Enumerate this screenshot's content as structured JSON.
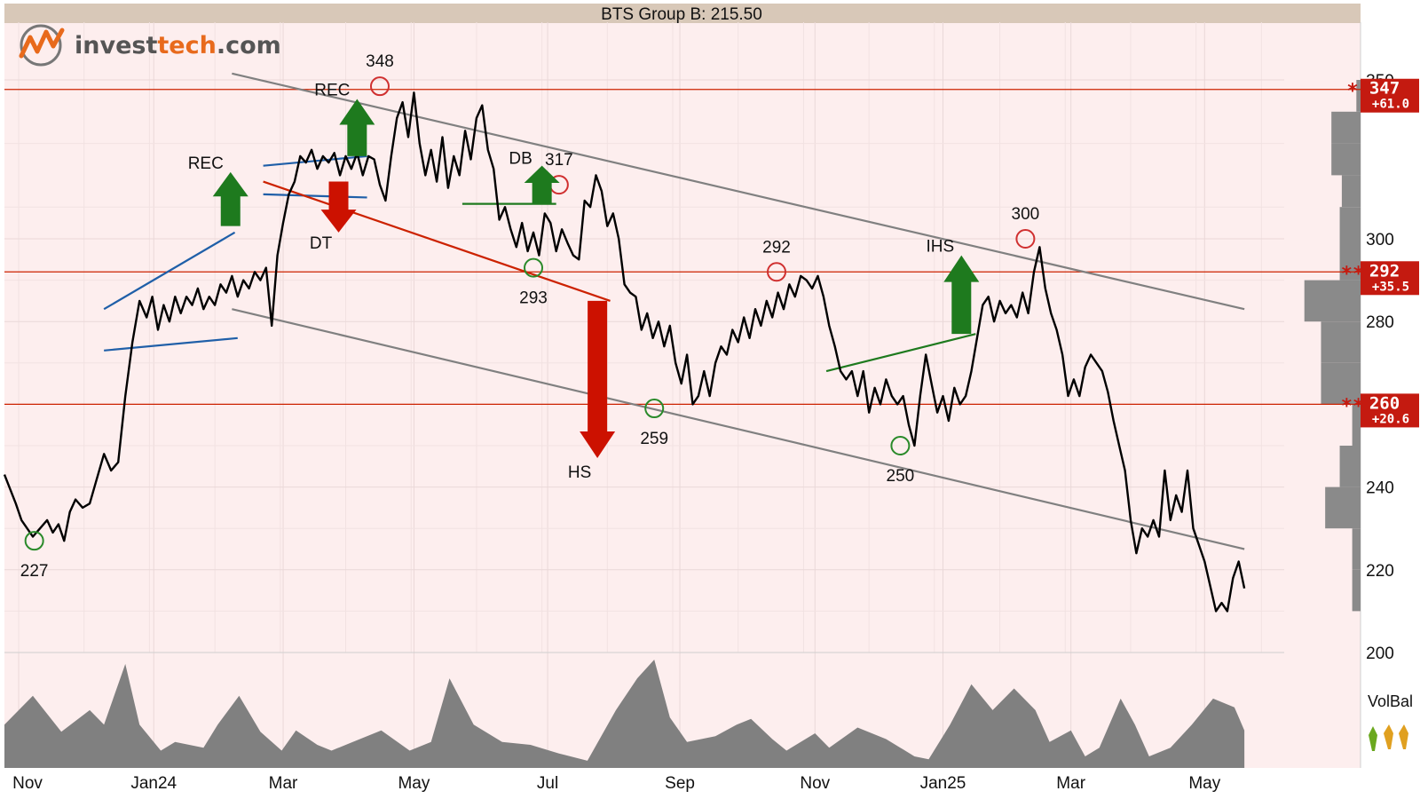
{
  "logo": {
    "brand_part": "invest",
    "accent_part": "tech",
    "suffix": ".com",
    "brand_color": "#555555",
    "accent_color": "#e86a1c"
  },
  "chart_data": {
    "type": "line",
    "title": "BTS Group B: 215.50",
    "xlabel": "",
    "ylabel": "",
    "ylim": [
      200,
      360
    ],
    "y_ticks": [
      200,
      220,
      240,
      260,
      280,
      300,
      350
    ],
    "x_ticks": [
      "Nov",
      "Jan24",
      "Mar",
      "May",
      "Jul",
      "Sep",
      "Nov",
      "Jan25",
      "Mar",
      "May"
    ],
    "grid": true,
    "colors": {
      "price": "#000000",
      "support_resistance": "#cc2200",
      "channel": "#808080",
      "wedge": "#1f5fa8",
      "signal_up": "#1e7a1e",
      "signal_down": "#cc1100",
      "volume": "#808080",
      "background": "#fdeeee",
      "title_bar": "#d8c8b8"
    },
    "price_series": {
      "name": "",
      "points": [
        [
          0,
          243
        ],
        [
          0.8,
          236
        ],
        [
          1.2,
          232
        ],
        [
          1.6,
          230
        ],
        [
          2.0,
          228
        ],
        [
          2.5,
          230
        ],
        [
          3,
          232
        ],
        [
          3.4,
          229
        ],
        [
          3.8,
          231
        ],
        [
          4.2,
          227
        ],
        [
          4.6,
          234
        ],
        [
          5,
          237
        ],
        [
          5.5,
          235
        ],
        [
          6,
          236
        ],
        [
          6.5,
          242
        ],
        [
          7,
          248
        ],
        [
          7.5,
          244
        ],
        [
          8,
          246
        ],
        [
          8.5,
          262
        ],
        [
          9,
          275
        ],
        [
          9.5,
          285
        ],
        [
          10,
          281
        ],
        [
          10.4,
          286
        ],
        [
          10.8,
          278
        ],
        [
          11.2,
          284
        ],
        [
          11.6,
          280
        ],
        [
          12,
          286
        ],
        [
          12.4,
          282
        ],
        [
          12.8,
          286
        ],
        [
          13.2,
          284
        ],
        [
          13.6,
          288
        ],
        [
          14,
          283
        ],
        [
          14.4,
          286
        ],
        [
          14.8,
          284
        ],
        [
          15.2,
          289
        ],
        [
          15.6,
          287
        ],
        [
          16,
          291
        ],
        [
          16.4,
          286
        ],
        [
          16.8,
          290
        ],
        [
          17.2,
          288
        ],
        [
          17.6,
          292
        ],
        [
          18,
          290
        ],
        [
          18.4,
          293
        ],
        [
          18.8,
          279
        ],
        [
          19.2,
          296
        ],
        [
          19.6,
          305
        ],
        [
          20,
          314
        ],
        [
          20.4,
          318
        ],
        [
          20.8,
          326
        ],
        [
          21.2,
          324
        ],
        [
          21.6,
          328
        ],
        [
          22,
          322
        ],
        [
          22.4,
          326
        ],
        [
          22.8,
          324
        ],
        [
          23.2,
          327
        ],
        [
          23.6,
          320
        ],
        [
          24,
          326
        ],
        [
          24.4,
          322
        ],
        [
          24.8,
          327
        ],
        [
          25.2,
          320
        ],
        [
          25.6,
          326
        ],
        [
          26,
          325
        ],
        [
          26.4,
          317
        ],
        [
          26.8,
          312
        ],
        [
          27.2,
          326
        ],
        [
          27.6,
          338
        ],
        [
          28,
          343
        ],
        [
          28.4,
          332
        ],
        [
          28.8,
          346
        ],
        [
          29.2,
          330
        ],
        [
          29.6,
          320
        ],
        [
          30,
          328
        ],
        [
          30.4,
          318
        ],
        [
          30.8,
          332
        ],
        [
          31.2,
          316
        ],
        [
          31.6,
          326
        ],
        [
          32,
          320
        ],
        [
          32.4,
          334
        ],
        [
          32.8,
          325
        ],
        [
          33.2,
          338
        ],
        [
          33.6,
          342
        ],
        [
          34,
          328
        ],
        [
          34.4,
          322
        ],
        [
          34.8,
          306
        ],
        [
          35.2,
          310
        ],
        [
          35.6,
          303
        ],
        [
          36,
          298
        ],
        [
          36.4,
          305
        ],
        [
          36.8,
          297
        ],
        [
          37.2,
          302
        ],
        [
          37.6,
          296
        ],
        [
          38,
          308
        ],
        [
          38.4,
          305
        ],
        [
          38.8,
          297
        ],
        [
          39.2,
          303
        ],
        [
          39.6,
          299
        ],
        [
          40,
          296
        ],
        [
          40.4,
          295
        ],
        [
          40.8,
          312
        ],
        [
          41.2,
          310
        ],
        [
          41.6,
          320
        ],
        [
          42,
          315
        ],
        [
          42.4,
          304
        ],
        [
          42.8,
          308
        ],
        [
          43.2,
          300
        ],
        [
          43.6,
          289
        ],
        [
          44,
          287
        ],
        [
          44.4,
          286
        ],
        [
          44.8,
          278
        ],
        [
          45.2,
          282
        ],
        [
          45.6,
          276
        ],
        [
          46,
          280
        ],
        [
          46.4,
          274
        ],
        [
          46.8,
          279
        ],
        [
          47.2,
          270
        ],
        [
          47.6,
          265
        ],
        [
          48,
          272
        ],
        [
          48.4,
          260
        ],
        [
          48.8,
          262
        ],
        [
          49.2,
          268
        ],
        [
          49.6,
          262
        ],
        [
          50,
          270
        ],
        [
          50.4,
          274
        ],
        [
          50.8,
          272
        ],
        [
          51.2,
          278
        ],
        [
          51.6,
          275
        ],
        [
          52,
          281
        ],
        [
          52.4,
          276
        ],
        [
          52.8,
          283
        ],
        [
          53.2,
          279
        ],
        [
          53.6,
          285
        ],
        [
          54,
          281
        ],
        [
          54.4,
          287
        ],
        [
          54.8,
          283
        ],
        [
          55.2,
          289
        ],
        [
          55.6,
          286
        ],
        [
          56,
          291
        ],
        [
          56.4,
          290
        ],
        [
          56.8,
          288
        ],
        [
          57.2,
          291
        ],
        [
          57.6,
          286
        ],
        [
          58,
          279
        ],
        [
          58.4,
          274
        ],
        [
          58.8,
          268
        ],
        [
          59.2,
          266
        ],
        [
          59.6,
          268
        ],
        [
          60,
          262
        ],
        [
          60.4,
          268
        ],
        [
          60.8,
          258
        ],
        [
          61.2,
          264
        ],
        [
          61.6,
          260
        ],
        [
          62,
          266
        ],
        [
          62.4,
          262
        ],
        [
          62.8,
          260
        ],
        [
          63.2,
          262
        ],
        [
          63.6,
          255
        ],
        [
          64,
          250
        ],
        [
          64.4,
          262
        ],
        [
          64.8,
          272
        ],
        [
          65.2,
          265
        ],
        [
          65.6,
          258
        ],
        [
          66,
          262
        ],
        [
          66.4,
          256
        ],
        [
          66.8,
          264
        ],
        [
          67.2,
          260
        ],
        [
          67.6,
          262
        ],
        [
          68,
          268
        ],
        [
          68.4,
          276
        ],
        [
          68.8,
          284
        ],
        [
          69.2,
          286
        ],
        [
          69.6,
          280
        ],
        [
          70,
          285
        ],
        [
          70.4,
          282
        ],
        [
          70.8,
          284
        ],
        [
          71.2,
          281
        ],
        [
          71.6,
          287
        ],
        [
          72,
          282
        ],
        [
          72.4,
          292
        ],
        [
          72.8,
          298
        ],
        [
          73.2,
          288
        ],
        [
          73.6,
          282
        ],
        [
          74,
          278
        ],
        [
          74.4,
          272
        ],
        [
          74.8,
          262
        ],
        [
          75.2,
          266
        ],
        [
          75.6,
          262
        ],
        [
          76,
          269
        ],
        [
          76.4,
          272
        ],
        [
          76.8,
          270
        ],
        [
          77.2,
          268
        ],
        [
          77.6,
          263
        ],
        [
          78,
          256
        ],
        [
          78.4,
          250
        ],
        [
          78.8,
          244
        ],
        [
          79.2,
          232
        ],
        [
          79.6,
          224
        ],
        [
          80,
          230
        ],
        [
          80.4,
          228
        ],
        [
          80.8,
          232
        ],
        [
          81.2,
          228
        ],
        [
          81.6,
          244
        ],
        [
          82,
          232
        ],
        [
          82.4,
          238
        ],
        [
          82.8,
          234
        ],
        [
          83.2,
          244
        ],
        [
          83.6,
          230
        ],
        [
          84,
          226
        ],
        [
          84.4,
          222
        ],
        [
          84.8,
          216
        ],
        [
          85.2,
          210
        ],
        [
          85.6,
          212
        ],
        [
          86,
          210
        ],
        [
          86.4,
          218
        ],
        [
          86.8,
          222
        ],
        [
          87.2,
          215.5
        ]
      ]
    },
    "support_resistance_levels": [
      {
        "label": "347",
        "value": 347,
        "change": "+61.0"
      },
      {
        "label": "292",
        "value": 292,
        "change": "+35.5"
      },
      {
        "label": "260",
        "value": 260,
        "change": "+20.6"
      }
    ],
    "level_markers": [
      "*",
      "**",
      "**"
    ],
    "trend_channel": {
      "upper": [
        [
          16,
          352
        ],
        [
          87.2,
          283
        ]
      ],
      "lower": [
        [
          16,
          283
        ],
        [
          87.2,
          225
        ]
      ]
    },
    "pattern_lines": [
      {
        "pattern": "wedge-upper",
        "points": [
          [
            7,
            283
          ],
          [
            16.2,
            302
          ]
        ]
      },
      {
        "pattern": "wedge-lower",
        "points": [
          [
            7,
            273
          ],
          [
            16.4,
            276
          ]
        ]
      },
      {
        "pattern": "flag-upper",
        "points": [
          [
            18.2,
            323
          ],
          [
            25.5,
            326
          ]
        ]
      },
      {
        "pattern": "flag-lower",
        "points": [
          [
            18.2,
            314
          ],
          [
            25.5,
            313
          ]
        ]
      },
      {
        "pattern": "falling-trend",
        "points": [
          [
            18.2,
            318
          ],
          [
            42.6,
            285
          ]
        ]
      },
      {
        "pattern": "db-neckline",
        "points": [
          [
            32.2,
            311
          ],
          [
            38.8,
            311
          ]
        ]
      },
      {
        "pattern": "ihs-neckline",
        "points": [
          [
            57.8,
            268
          ],
          [
            68.3,
            277
          ]
        ]
      }
    ],
    "annotations": [
      {
        "label": "227",
        "x": 2.1,
        "y": 227,
        "kind": "bottom"
      },
      {
        "label": "348",
        "x": 26.4,
        "y": 348,
        "kind": "top"
      },
      {
        "label": "293",
        "x": 37.2,
        "y": 293,
        "kind": "bottom"
      },
      {
        "label": "317",
        "x": 39.0,
        "y": 317,
        "kind": "top"
      },
      {
        "label": "259",
        "x": 45.7,
        "y": 259,
        "kind": "bottom"
      },
      {
        "label": "292",
        "x": 54.3,
        "y": 292,
        "kind": "top"
      },
      {
        "label": "250",
        "x": 63.0,
        "y": 250,
        "kind": "bottom"
      },
      {
        "label": "300",
        "x": 71.8,
        "y": 300,
        "kind": "top"
      }
    ],
    "signals": [
      {
        "label": "REC",
        "direction": "up",
        "x": 15.9,
        "y_from": 304,
        "y_to": 321
      },
      {
        "label": "REC",
        "direction": "up",
        "x": 24.8,
        "y_from": 326,
        "y_to": 344
      },
      {
        "label": "DT",
        "direction": "down",
        "x": 23.5,
        "y_from": 318,
        "y_to": 302
      },
      {
        "label": "DB",
        "direction": "up",
        "x": 37.8,
        "y_from": 311,
        "y_to": 323
      },
      {
        "label": "HS",
        "direction": "down",
        "x": 41.7,
        "y_from": 285,
        "y_to": 247
      },
      {
        "label": "IHS",
        "direction": "up",
        "x": 67.3,
        "y_from": 277,
        "y_to": 296
      }
    ],
    "volume_profile": [
      [
        340,
        2
      ],
      [
        330,
        14
      ],
      [
        320,
        14
      ],
      [
        310,
        9
      ],
      [
        300,
        10
      ],
      [
        290,
        10
      ],
      [
        280,
        27
      ],
      [
        270,
        19
      ],
      [
        260,
        19
      ],
      [
        250,
        4
      ],
      [
        240,
        10
      ],
      [
        230,
        17
      ],
      [
        220,
        4
      ],
      [
        210,
        4
      ]
    ],
    "volume_series": [
      [
        0,
        30
      ],
      [
        2,
        50
      ],
      [
        4,
        25
      ],
      [
        6,
        40
      ],
      [
        7,
        30
      ],
      [
        8.5,
        72
      ],
      [
        9.5,
        30
      ],
      [
        11,
        12
      ],
      [
        12,
        18
      ],
      [
        14,
        14
      ],
      [
        15,
        30
      ],
      [
        16.5,
        50
      ],
      [
        18,
        25
      ],
      [
        19.5,
        12
      ],
      [
        20.5,
        26
      ],
      [
        22,
        16
      ],
      [
        23,
        12
      ],
      [
        24.5,
        18
      ],
      [
        26.5,
        26
      ],
      [
        28.5,
        12
      ],
      [
        30,
        18
      ],
      [
        31.3,
        62
      ],
      [
        33,
        30
      ],
      [
        35,
        18
      ],
      [
        37,
        16
      ],
      [
        39,
        10
      ],
      [
        41,
        5
      ],
      [
        43,
        40
      ],
      [
        44.5,
        62
      ],
      [
        45.7,
        75
      ],
      [
        46.8,
        35
      ],
      [
        48,
        18
      ],
      [
        50,
        22
      ],
      [
        51.5,
        30
      ],
      [
        52.5,
        34
      ],
      [
        54,
        20
      ],
      [
        55,
        12
      ],
      [
        57,
        24
      ],
      [
        58,
        14
      ],
      [
        60,
        28
      ],
      [
        62,
        20
      ],
      [
        63,
        14
      ],
      [
        64,
        8
      ],
      [
        65,
        6
      ],
      [
        66.5,
        30
      ],
      [
        68,
        58
      ],
      [
        69.5,
        40
      ],
      [
        71,
        55
      ],
      [
        72.5,
        40
      ],
      [
        73.5,
        18
      ],
      [
        75,
        26
      ],
      [
        76,
        8
      ],
      [
        77,
        14
      ],
      [
        78.5,
        48
      ],
      [
        79.5,
        30
      ],
      [
        80.5,
        8
      ],
      [
        82,
        14
      ],
      [
        83.5,
        30
      ],
      [
        85,
        48
      ],
      [
        86.5,
        42
      ],
      [
        87.2,
        26
      ]
    ],
    "volbal_label": "VolBal"
  }
}
